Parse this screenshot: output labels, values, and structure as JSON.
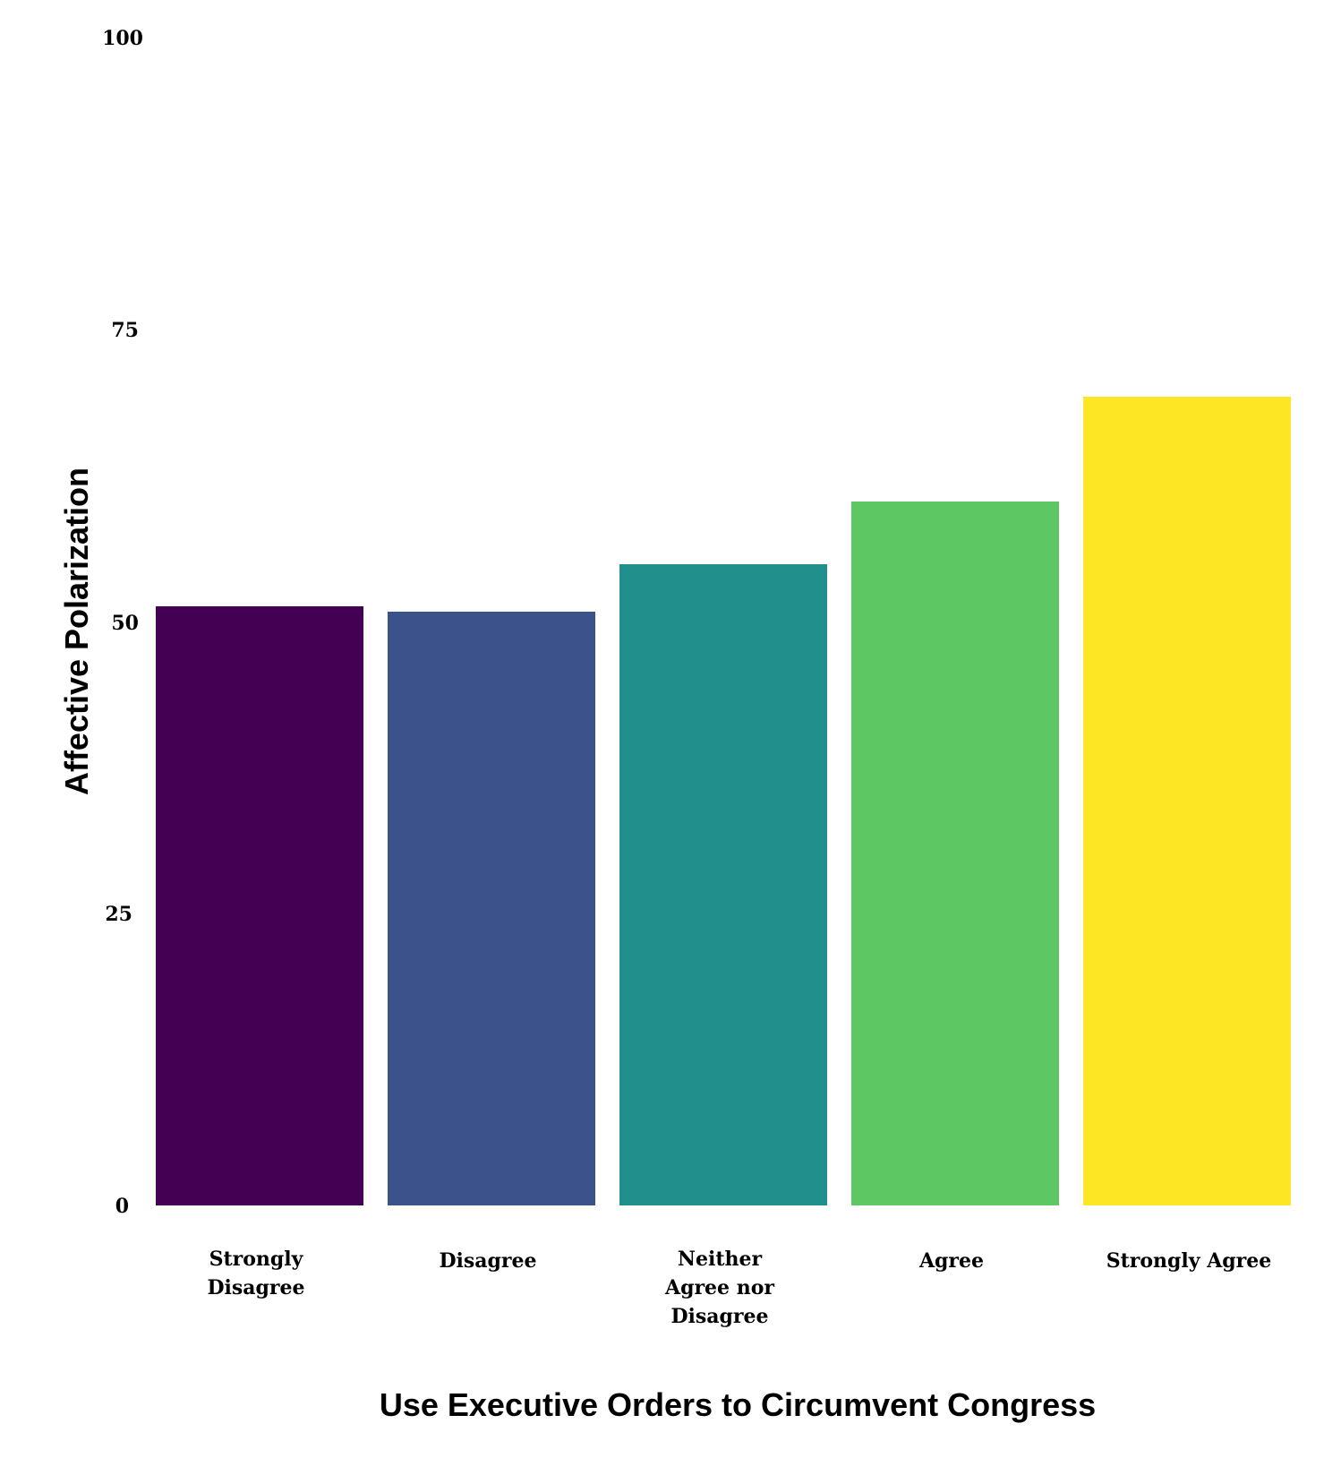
{
  "chart_data": {
    "type": "bar",
    "title": "",
    "xlabel": "Use Executive Orders to Circumvent Congress",
    "ylabel": "Affective Polarization",
    "categories": [
      "Strongly Disagree",
      "Disagree",
      "Neither Agree nor Disagree",
      "Agree",
      "Strongly Agree"
    ],
    "category_display": [
      "Strongly\nDisagree",
      "Disagree",
      "Neither\nAgree nor\nDisagree",
      "Agree",
      "Strongly Agree"
    ],
    "values": [
      51.3,
      50.8,
      54.9,
      60.2,
      69.2
    ],
    "colors": [
      "#440154",
      "#3b528b",
      "#21908d",
      "#5dc863",
      "#fde725"
    ],
    "ylim": [
      0,
      100
    ],
    "yticks": [
      "0",
      "25",
      "50",
      "75",
      "100"
    ],
    "grid": false,
    "legend": "none"
  }
}
